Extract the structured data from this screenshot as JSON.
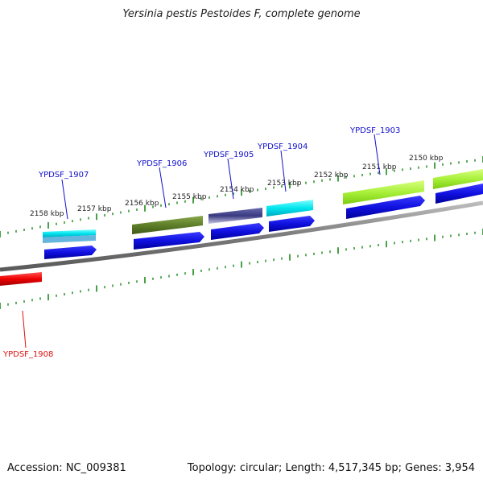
{
  "title": "Yersinia pestis Pestoides F, complete genome",
  "footer": {
    "accession": "Accession: NC_009381",
    "stats": "Topology: circular; Length: 4,517,345 bp; Genes: 3,954"
  },
  "colors": {
    "backbone": "#808080",
    "tick_green": "#1a8a1a",
    "label_blue": "#1010cc",
    "label_red": "#dd1111",
    "gene_blue": "#1010e0",
    "gene_red": "#ee0000"
  },
  "kbp_labels": [
    "2158 kbp",
    "2157 kbp",
    "2156 kbp",
    "2155 kbp",
    "2154 kbp",
    "2153 kbp",
    "2152 kbp",
    "2151 kbp",
    "2150 kbp"
  ],
  "genes": [
    {
      "label": "YPDSF_1907",
      "color": "#1010cc"
    },
    {
      "label": "YPDSF_1906",
      "color": "#1010cc"
    },
    {
      "label": "YPDSF_1905",
      "color": "#1010cc"
    },
    {
      "label": "YPDSF_1904",
      "color": "#1010cc"
    },
    {
      "label": "YPDSF_1903",
      "color": "#1010cc"
    },
    {
      "label": "YPDSF_1908",
      "color": "#dd1111"
    }
  ]
}
